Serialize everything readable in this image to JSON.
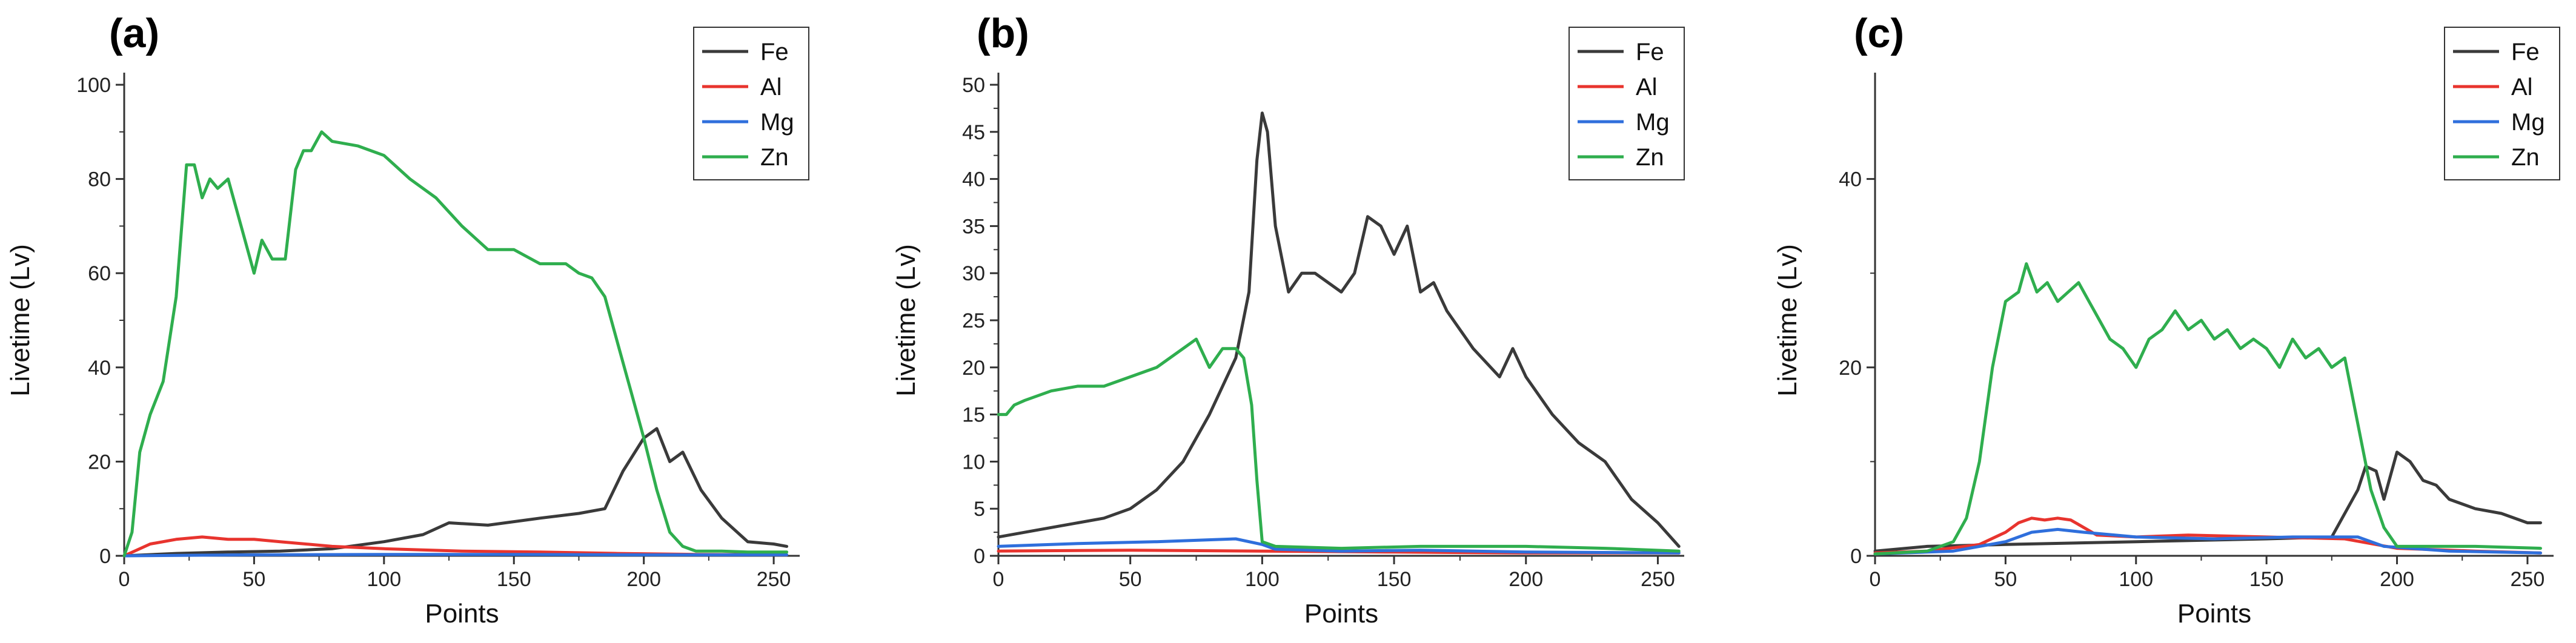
{
  "chart_data": [
    {
      "type": "line",
      "panel_label": "(a)",
      "xlabel": "Points",
      "ylabel": "Livetime (Lv)",
      "xlim": [
        0,
        260
      ],
      "ylim": [
        0,
        100
      ],
      "xticks": [
        "0",
        "50",
        "100",
        "150",
        "200",
        "250"
      ],
      "xtick_values": [
        0,
        50,
        100,
        150,
        200,
        250
      ],
      "yticks": [
        "0",
        "20",
        "40",
        "60",
        "80",
        "100"
      ],
      "ytick_values": [
        0,
        20,
        40,
        60,
        80,
        100
      ],
      "legend_position": "top-right",
      "series": [
        {
          "name": "Fe",
          "color": "#3a3a3a",
          "x": [
            0,
            20,
            40,
            60,
            80,
            100,
            115,
            125,
            140,
            160,
            175,
            185,
            192,
            200,
            205,
            210,
            215,
            222,
            230,
            240,
            250,
            255
          ],
          "y": [
            0,
            0.5,
            0.8,
            1,
            1.5,
            3,
            4.5,
            7,
            6.5,
            8,
            9,
            10,
            18,
            25,
            27,
            20,
            22,
            14,
            8,
            3,
            2.5,
            2
          ]
        },
        {
          "name": "Al",
          "color": "#e8342e",
          "x": [
            0,
            10,
            20,
            30,
            40,
            50,
            60,
            80,
            100,
            130,
            160,
            190,
            220,
            255
          ],
          "y": [
            0,
            2.5,
            3.5,
            4,
            3.5,
            3.5,
            3,
            2,
            1.5,
            1,
            0.8,
            0.5,
            0.3,
            0.2
          ]
        },
        {
          "name": "Mg",
          "color": "#2f6fdc",
          "x": [
            0,
            50,
            100,
            150,
            200,
            255
          ],
          "y": [
            0,
            0.2,
            0.3,
            0.3,
            0.2,
            0.2
          ]
        },
        {
          "name": "Zn",
          "color": "#2fae4e",
          "x": [
            0,
            3,
            6,
            10,
            15,
            20,
            24,
            27,
            30,
            33,
            36,
            40,
            45,
            50,
            53,
            57,
            62,
            66,
            69,
            72,
            76,
            80,
            90,
            100,
            110,
            120,
            130,
            140,
            150,
            160,
            170,
            175,
            180,
            185,
            190,
            195,
            200,
            205,
            210,
            215,
            220,
            230,
            240,
            255
          ],
          "y": [
            0,
            5,
            22,
            30,
            37,
            55,
            83,
            83,
            76,
            80,
            78,
            80,
            70,
            60,
            67,
            63,
            63,
            82,
            86,
            86,
            90,
            88,
            87,
            85,
            80,
            76,
            70,
            65,
            65,
            62,
            62,
            60,
            59,
            55,
            45,
            35,
            25,
            14,
            5,
            2,
            1,
            1,
            0.8,
            0.8
          ]
        }
      ]
    },
    {
      "type": "line",
      "panel_label": "(b)",
      "xlabel": "Points",
      "ylabel": "Livetime (Lv)",
      "xlim": [
        0,
        260
      ],
      "ylim": [
        0,
        50
      ],
      "xticks": [
        "0",
        "50",
        "100",
        "150",
        "200",
        "250"
      ],
      "xtick_values": [
        0,
        50,
        100,
        150,
        200,
        250
      ],
      "yticks": [
        "0",
        "5",
        "10",
        "15",
        "20",
        "25",
        "30",
        "35",
        "40",
        "45",
        "50"
      ],
      "ytick_values": [
        0,
        5,
        10,
        15,
        20,
        25,
        30,
        35,
        40,
        45,
        50
      ],
      "legend_position": "top-right",
      "series": [
        {
          "name": "Fe",
          "color": "#3a3a3a",
          "x": [
            0,
            20,
            40,
            50,
            60,
            70,
            80,
            90,
            95,
            98,
            100,
            102,
            105,
            110,
            115,
            120,
            130,
            135,
            140,
            145,
            150,
            155,
            160,
            165,
            170,
            180,
            190,
            195,
            200,
            210,
            220,
            230,
            240,
            250,
            258
          ],
          "y": [
            2,
            3,
            4,
            5,
            7,
            10,
            15,
            21,
            28,
            42,
            47,
            45,
            35,
            28,
            30,
            30,
            28,
            30,
            36,
            35,
            32,
            35,
            28,
            29,
            26,
            22,
            19,
            22,
            19,
            15,
            12,
            10,
            6,
            3.5,
            1
          ]
        },
        {
          "name": "Al",
          "color": "#e8342e",
          "x": [
            0,
            50,
            100,
            150,
            200,
            258
          ],
          "y": [
            0.5,
            0.6,
            0.5,
            0.4,
            0.3,
            0.3
          ]
        },
        {
          "name": "Mg",
          "color": "#2f6fdc",
          "x": [
            0,
            30,
            60,
            90,
            100,
            105,
            130,
            160,
            200,
            258
          ],
          "y": [
            1,
            1.3,
            1.5,
            1.8,
            1.2,
            0.7,
            0.5,
            0.6,
            0.4,
            0.3
          ]
        },
        {
          "name": "Zn",
          "color": "#2fae4e",
          "x": [
            0,
            3,
            6,
            10,
            20,
            30,
            40,
            50,
            60,
            70,
            75,
            80,
            85,
            90,
            93,
            96,
            98,
            100,
            105,
            130,
            160,
            200,
            230,
            258
          ],
          "y": [
            15,
            15,
            16,
            16.5,
            17.5,
            18,
            18,
            19,
            20,
            22,
            23,
            20,
            22,
            22,
            21,
            16,
            8,
            1.5,
            1,
            0.8,
            1,
            1,
            0.8,
            0.5
          ]
        }
      ]
    },
    {
      "type": "line",
      "panel_label": "(c)",
      "xlabel": "Points",
      "ylabel": "Livetime (Lv)",
      "xlim": [
        0,
        260
      ],
      "ylim": [
        0,
        50
      ],
      "xticks": [
        "0",
        "50",
        "100",
        "150",
        "200",
        "250"
      ],
      "xtick_values": [
        0,
        50,
        100,
        150,
        200,
        250
      ],
      "yticks": [
        "0",
        "20",
        "40"
      ],
      "ytick_values": [
        0,
        20,
        40
      ],
      "legend_position": "top-right",
      "series": [
        {
          "name": "Fe",
          "color": "#3a3a3a",
          "x": [
            0,
            20,
            50,
            100,
            150,
            175,
            185,
            188,
            192,
            195,
            200,
            205,
            210,
            215,
            220,
            230,
            240,
            250,
            255
          ],
          "y": [
            0.5,
            1,
            1.2,
            1.5,
            1.8,
            2,
            7,
            9.5,
            9,
            6,
            11,
            10,
            8,
            7.5,
            6,
            5,
            4.5,
            3.5,
            3.5
          ]
        },
        {
          "name": "Al",
          "color": "#e8342e",
          "x": [
            0,
            20,
            40,
            50,
            55,
            60,
            65,
            70,
            75,
            80,
            85,
            100,
            120,
            150,
            180,
            200,
            230,
            255
          ],
          "y": [
            0.3,
            0.5,
            1.2,
            2.5,
            3.5,
            4,
            3.8,
            4,
            3.8,
            3,
            2.2,
            2,
            2.2,
            2,
            1.8,
            0.8,
            0.5,
            0.3
          ]
        },
        {
          "name": "Mg",
          "color": "#2f6fdc",
          "x": [
            0,
            30,
            50,
            60,
            70,
            80,
            100,
            130,
            160,
            185,
            195,
            220,
            255
          ],
          "y": [
            0.2,
            0.5,
            1.5,
            2.5,
            2.8,
            2.5,
            2,
            1.8,
            2,
            2,
            1,
            0.5,
            0.3
          ]
        },
        {
          "name": "Zn",
          "color": "#2fae4e",
          "x": [
            0,
            20,
            30,
            35,
            40,
            45,
            50,
            55,
            58,
            62,
            66,
            70,
            74,
            78,
            82,
            86,
            90,
            95,
            100,
            105,
            110,
            115,
            120,
            125,
            130,
            135,
            140,
            145,
            150,
            155,
            160,
            165,
            170,
            175,
            180,
            185,
            190,
            195,
            200,
            210,
            230,
            255
          ],
          "y": [
            0.2,
            0.5,
            1.5,
            4,
            10,
            20,
            27,
            28,
            31,
            28,
            29,
            27,
            28,
            29,
            27,
            25,
            23,
            22,
            20,
            23,
            24,
            26,
            24,
            25,
            23,
            24,
            22,
            23,
            22,
            20,
            23,
            21,
            22,
            20,
            21,
            14,
            7,
            3,
            1,
            1,
            1,
            0.8
          ]
        }
      ]
    }
  ]
}
